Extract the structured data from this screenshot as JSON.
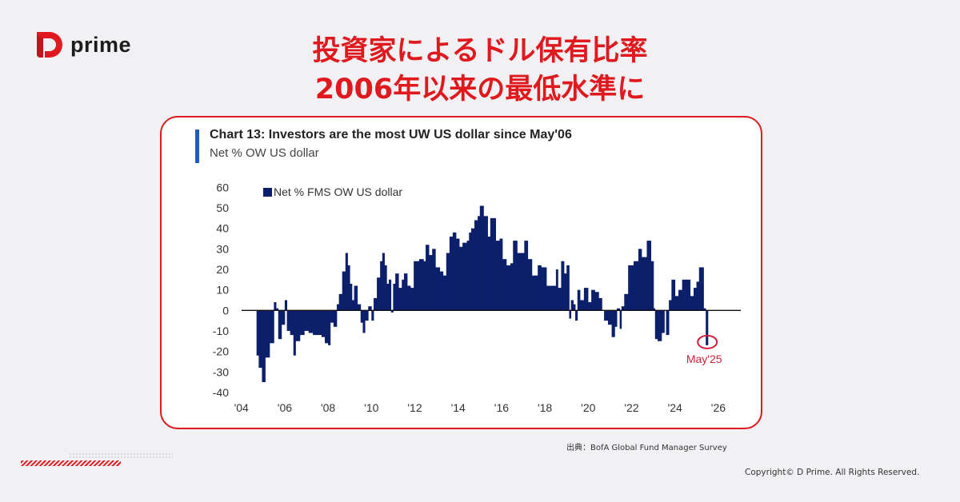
{
  "brand": {
    "name": "prime",
    "logo_letter": "D",
    "color": "#e0191e"
  },
  "headline": {
    "line1": "投資家によるドル保有比率",
    "line2": "2006年以来の最低水準に"
  },
  "source": "出典：BofA Global Fund Manager Survey",
  "copyright": "Copyright© D Prime. All Rights Reserved.",
  "chart_data": {
    "type": "bar",
    "title": "Chart 13: Investors are the most UW US dollar since May'06",
    "subtitle": "Net % OW US dollar",
    "legend": {
      "label": "Net % FMS OW US dollar",
      "placement": "top-left"
    },
    "series": [
      {
        "name": "Net % FMS OW US dollar",
        "color": "#0c1f6b",
        "points": [
          [
            2004.7,
            -22
          ],
          [
            2004.8,
            -28
          ],
          [
            2004.95,
            -35
          ],
          [
            2005.1,
            -23
          ],
          [
            2005.3,
            -16
          ],
          [
            2005.5,
            4
          ],
          [
            2005.6,
            1
          ],
          [
            2005.7,
            -14
          ],
          [
            2005.85,
            -7
          ],
          [
            2006.0,
            5
          ],
          [
            2006.1,
            -10
          ],
          [
            2006.25,
            -12
          ],
          [
            2006.4,
            -22
          ],
          [
            2006.5,
            -15
          ],
          [
            2006.7,
            -12
          ],
          [
            2006.9,
            -10
          ],
          [
            2007.1,
            -11
          ],
          [
            2007.3,
            -12
          ],
          [
            2007.5,
            -12
          ],
          [
            2007.7,
            -13
          ],
          [
            2007.85,
            -16
          ],
          [
            2008.0,
            -17
          ],
          [
            2008.1,
            -6
          ],
          [
            2008.25,
            -8
          ],
          [
            2008.4,
            3
          ],
          [
            2008.5,
            8
          ],
          [
            2008.65,
            19
          ],
          [
            2008.8,
            28
          ],
          [
            2008.9,
            22
          ],
          [
            2009.0,
            13
          ],
          [
            2009.1,
            5
          ],
          [
            2009.2,
            12
          ],
          [
            2009.35,
            3
          ],
          [
            2009.5,
            -6
          ],
          [
            2009.6,
            -11
          ],
          [
            2009.7,
            -5
          ],
          [
            2009.85,
            2
          ],
          [
            2010.0,
            -5
          ],
          [
            2010.1,
            6
          ],
          [
            2010.25,
            16
          ],
          [
            2010.4,
            24
          ],
          [
            2010.5,
            28
          ],
          [
            2010.6,
            22
          ],
          [
            2010.7,
            13
          ],
          [
            2010.8,
            15
          ],
          [
            2010.9,
            -1
          ],
          [
            2011.0,
            13
          ],
          [
            2011.1,
            18
          ],
          [
            2011.25,
            11
          ],
          [
            2011.4,
            15
          ],
          [
            2011.5,
            18
          ],
          [
            2011.65,
            12
          ],
          [
            2011.8,
            11
          ],
          [
            2011.95,
            24
          ],
          [
            2012.2,
            25
          ],
          [
            2012.4,
            24
          ],
          [
            2012.5,
            32
          ],
          [
            2012.65,
            27
          ],
          [
            2012.8,
            30
          ],
          [
            2012.95,
            21
          ],
          [
            2013.15,
            19
          ],
          [
            2013.3,
            17
          ],
          [
            2013.45,
            28
          ],
          [
            2013.6,
            36
          ],
          [
            2013.75,
            38
          ],
          [
            2013.9,
            35
          ],
          [
            2014.05,
            31
          ],
          [
            2014.2,
            33
          ],
          [
            2014.4,
            34
          ],
          [
            2014.5,
            38
          ],
          [
            2014.6,
            40
          ],
          [
            2014.75,
            44
          ],
          [
            2014.9,
            46
          ],
          [
            2015.0,
            51
          ],
          [
            2015.17,
            46
          ],
          [
            2015.36,
            36
          ],
          [
            2015.48,
            45
          ],
          [
            2015.6,
            45
          ],
          [
            2015.73,
            34
          ],
          [
            2015.91,
            35
          ],
          [
            2016.04,
            25
          ],
          [
            2016.22,
            22
          ],
          [
            2016.41,
            23
          ],
          [
            2016.53,
            34
          ],
          [
            2016.72,
            28
          ],
          [
            2016.9,
            28
          ],
          [
            2017.05,
            34
          ],
          [
            2017.21,
            25
          ],
          [
            2017.4,
            17
          ],
          [
            2017.54,
            17
          ],
          [
            2017.67,
            22
          ],
          [
            2017.83,
            21
          ],
          [
            2018.07,
            12
          ],
          [
            2018.26,
            12
          ],
          [
            2018.51,
            20
          ],
          [
            2018.6,
            11
          ],
          [
            2018.75,
            24
          ],
          [
            2018.88,
            18
          ],
          [
            2019.0,
            22
          ],
          [
            2019.12,
            -4
          ],
          [
            2019.2,
            5
          ],
          [
            2019.31,
            3
          ],
          [
            2019.4,
            -5
          ],
          [
            2019.5,
            10
          ],
          [
            2019.62,
            5
          ],
          [
            2019.8,
            11
          ],
          [
            2019.99,
            4
          ],
          [
            2020.14,
            10
          ],
          [
            2020.3,
            9
          ],
          [
            2020.48,
            6
          ],
          [
            2020.63,
            0
          ],
          [
            2020.73,
            -5
          ],
          [
            2020.91,
            -7
          ],
          [
            2021.08,
            -13
          ],
          [
            2021.22,
            -8
          ],
          [
            2021.32,
            1
          ],
          [
            2021.45,
            -9
          ],
          [
            2021.53,
            2
          ],
          [
            2021.66,
            8
          ],
          [
            2021.84,
            22
          ],
          [
            2022.09,
            24
          ],
          [
            2022.31,
            30
          ],
          [
            2022.46,
            26
          ],
          [
            2022.7,
            34
          ],
          [
            2022.89,
            24
          ],
          [
            2023.01,
            1
          ],
          [
            2023.08,
            -14
          ],
          [
            2023.2,
            -15
          ],
          [
            2023.38,
            -11
          ],
          [
            2023.51,
            0
          ],
          [
            2023.59,
            -12
          ],
          [
            2023.72,
            5
          ],
          [
            2023.84,
            15
          ],
          [
            2024.0,
            7
          ],
          [
            2024.16,
            10
          ],
          [
            2024.33,
            15
          ],
          [
            2024.56,
            15
          ],
          [
            2024.7,
            7
          ],
          [
            2024.86,
            11
          ],
          [
            2024.99,
            14
          ],
          [
            2025.11,
            21
          ],
          [
            2025.32,
            1
          ],
          [
            2025.42,
            -17
          ]
        ]
      }
    ],
    "annotation": {
      "label": "May'25",
      "x": 2025.42,
      "y": -17,
      "color": "#d0213a"
    },
    "xlim": [
      2004,
      2026
    ],
    "ylim": [
      -40,
      60
    ],
    "x_ticks": [
      {
        "v": 2004,
        "label": "'04"
      },
      {
        "v": 2006,
        "label": "'06"
      },
      {
        "v": 2008,
        "label": "'08"
      },
      {
        "v": 2010,
        "label": "'10"
      },
      {
        "v": 2012,
        "label": "'12"
      },
      {
        "v": 2014,
        "label": "'14"
      },
      {
        "v": 2016,
        "label": "'16"
      },
      {
        "v": 2018,
        "label": "'18"
      },
      {
        "v": 2020,
        "label": "'20"
      },
      {
        "v": 2022,
        "label": "'22"
      },
      {
        "v": 2024,
        "label": "'24"
      },
      {
        "v": 2026,
        "label": "'26"
      }
    ],
    "y_ticks": [
      60,
      50,
      40,
      30,
      20,
      10,
      0,
      -10,
      -20,
      -30,
      -40
    ],
    "grid": false
  }
}
